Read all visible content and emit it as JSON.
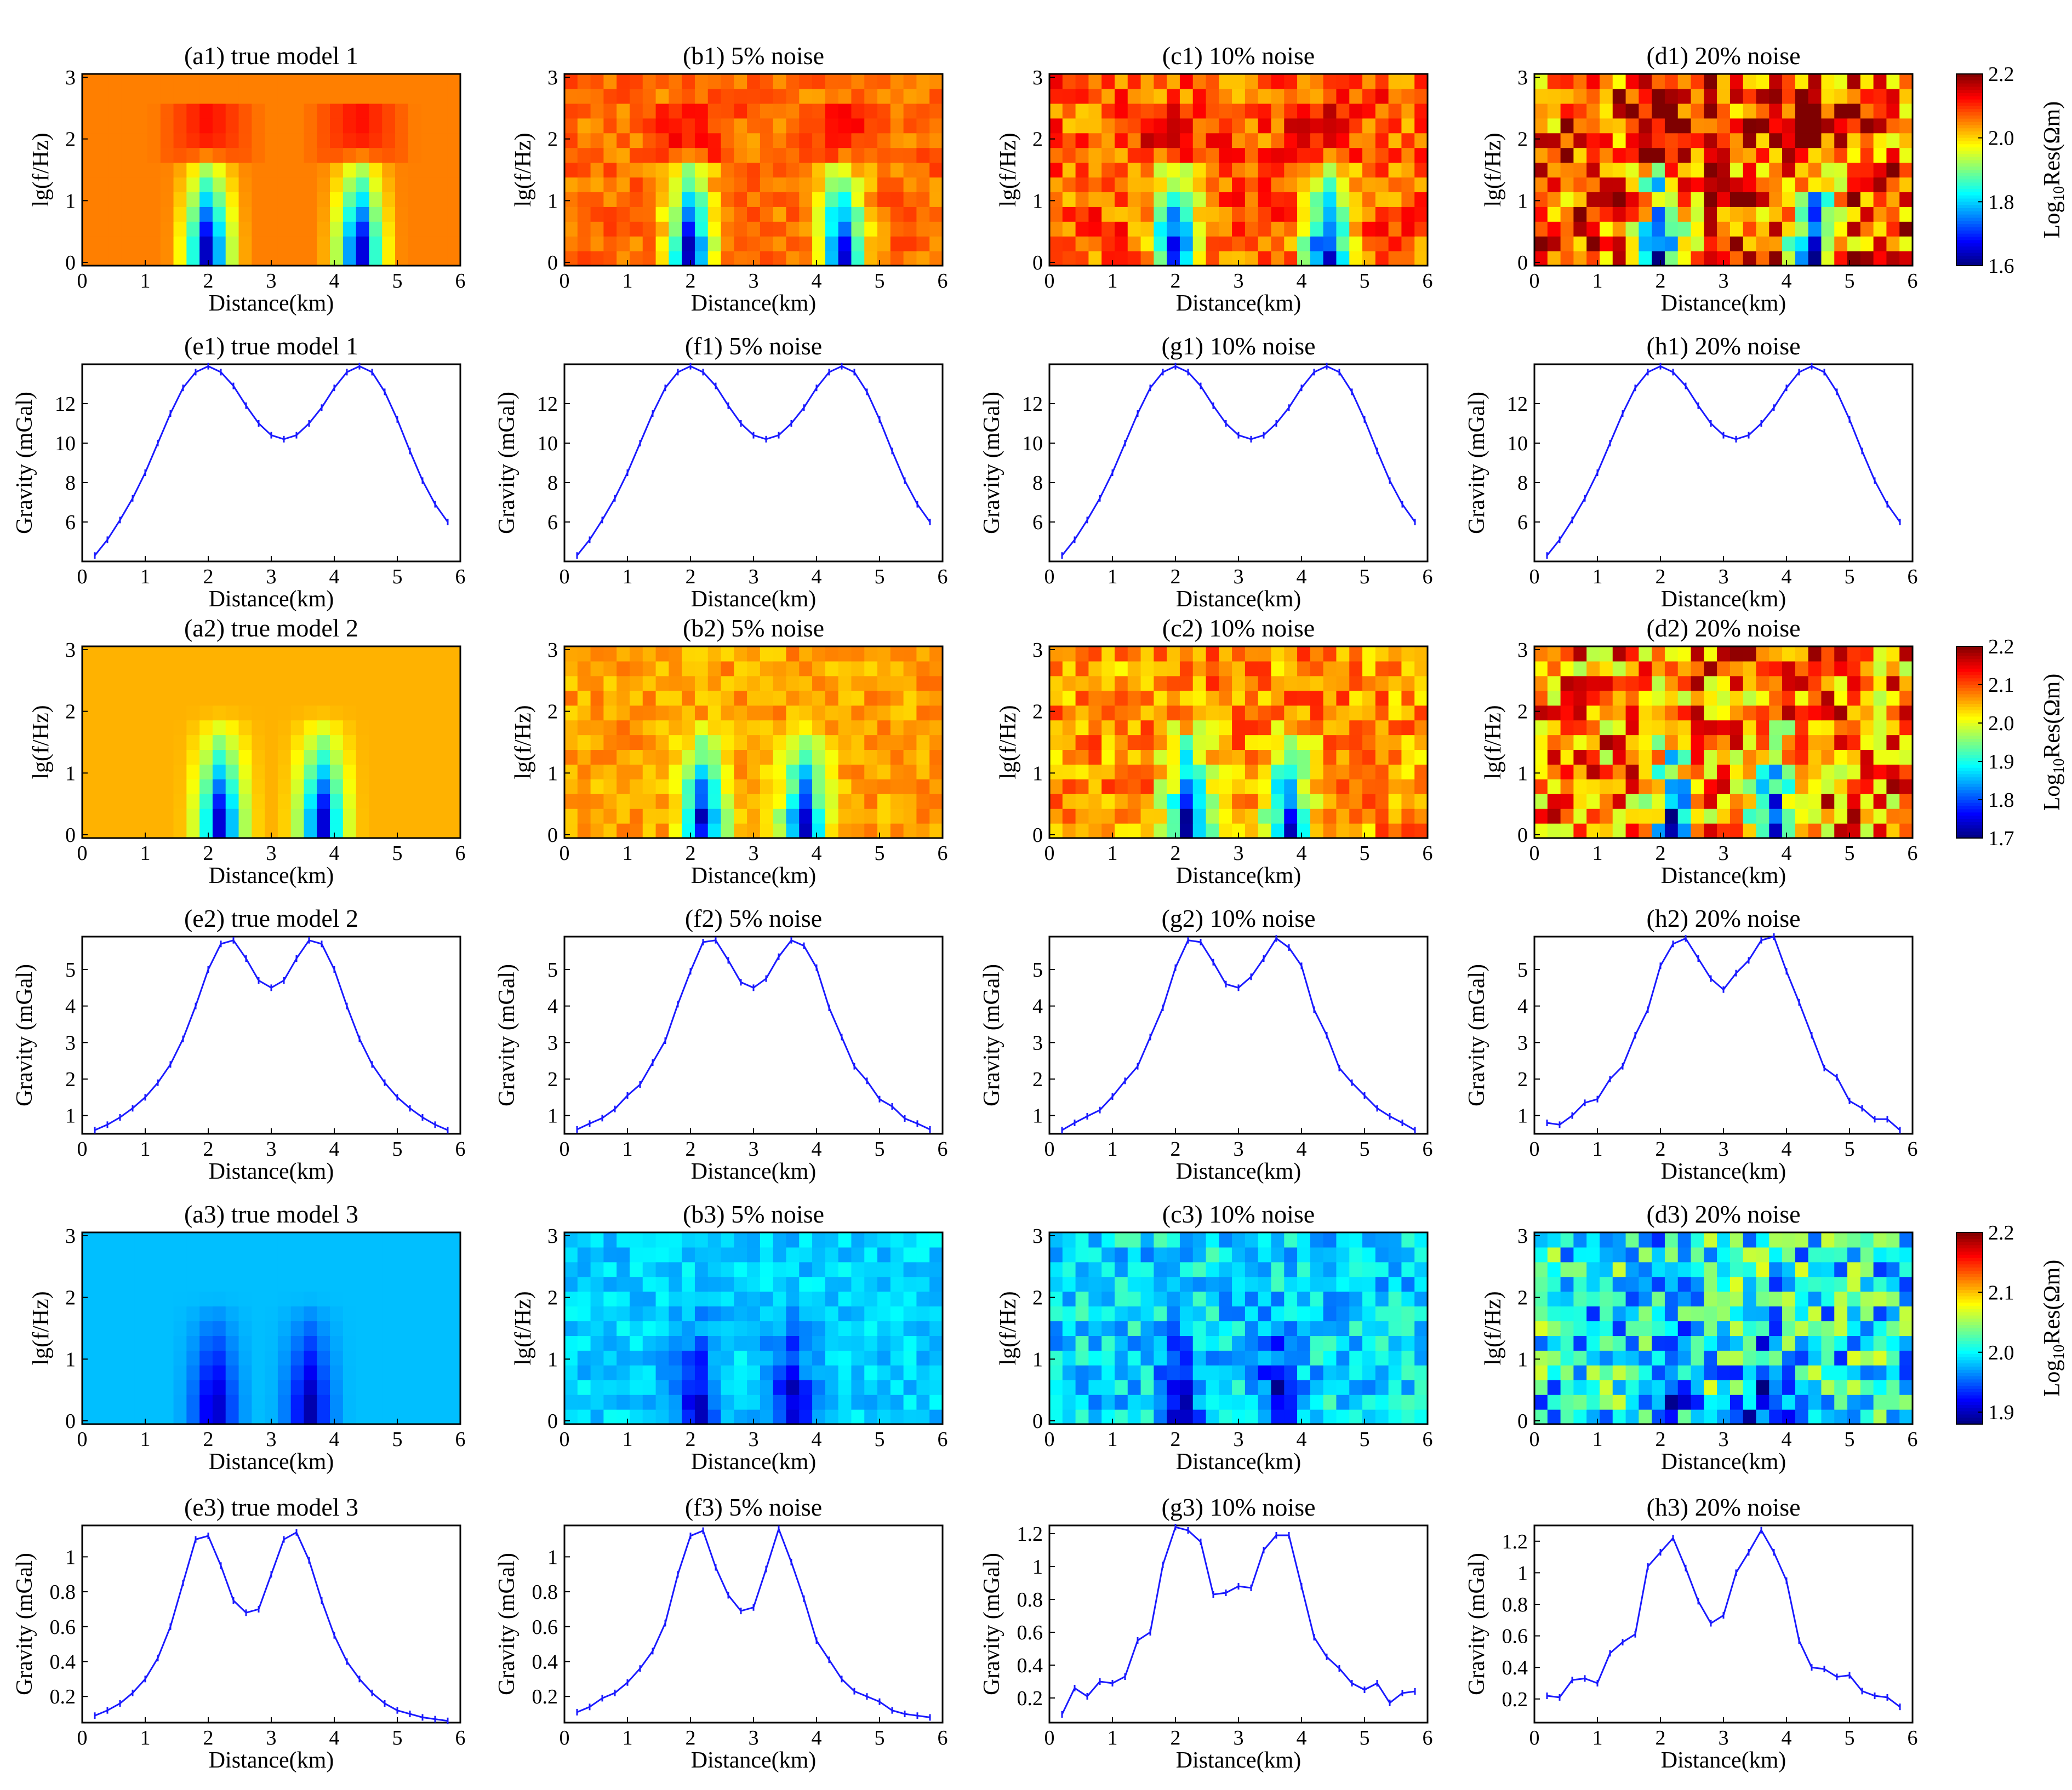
{
  "figure": {
    "x_label": "Distance(km)",
    "freq_label": "lg(f/Hz)",
    "gravity_label": "Gravity (mGal)",
    "colorbar_label": "Log10Res(Ωm)",
    "colorbar_label_main": "Log",
    "colorbar_label_sub": "10",
    "colorbar_label_tail": "Res(Ωm)"
  },
  "colors": {
    "line": "#1a1aff",
    "frame": "#000000",
    "colormap": [
      "#00007f",
      "#0000ff",
      "#007fff",
      "#00ffff",
      "#7fff7f",
      "#ffff00",
      "#ff7f00",
      "#ff0000",
      "#7f0000"
    ]
  },
  "chart_data": [
    {
      "type": "heatmap",
      "group": 1,
      "titles": [
        "(a1) true model 1",
        "(b1) 5% noise",
        "(c1)  10% noise",
        "(d1) 20% noise"
      ],
      "noise_levels": [
        0,
        0.05,
        0.1,
        0.2
      ],
      "xlabel": "Distance(km)",
      "ylabel": "lg(f/Hz)",
      "xlim": [
        0,
        6
      ],
      "ylim": [
        0,
        3
      ],
      "xticks": [
        "0",
        "1",
        "2",
        "3",
        "4",
        "5",
        "6"
      ],
      "yticks": [
        "0",
        "1",
        "2",
        "3"
      ],
      "nx": 29,
      "ny": 13,
      "clim": [
        1.6,
        2.2
      ],
      "background_log10_res": 2.05,
      "anomaly_centers_km": [
        2.0,
        4.4
      ],
      "anomaly_min_log10_res": 1.6,
      "colorbar": {
        "label": "Log10Res(Ωm)",
        "ticks": [
          "1.6",
          "1.8",
          "2.0",
          "2.2"
        ],
        "tick_values": [
          1.6,
          1.8,
          2.0,
          2.2
        ]
      }
    },
    {
      "type": "line",
      "group": 1,
      "titles": [
        "(e1) true model 1",
        "(f1) 5% noise",
        "(g1) 10% noise",
        "(h1) 20% noise"
      ],
      "xlabel": "Distance(km)",
      "ylabel": "Gravity (mGal)",
      "xlim": [
        0,
        6
      ],
      "ylim": [
        4,
        14
      ],
      "xticks": [
        "0",
        "1",
        "2",
        "3",
        "4",
        "5",
        "6"
      ],
      "yticks": [
        "6",
        "8",
        "10",
        "12"
      ],
      "ytick_values": [
        6,
        8,
        10,
        12
      ],
      "x": [
        0.2,
        0.4,
        0.6,
        0.8,
        1.0,
        1.2,
        1.4,
        1.6,
        1.8,
        2.0,
        2.2,
        2.4,
        2.6,
        2.8,
        3.0,
        3.2,
        3.4,
        3.6,
        3.8,
        4.0,
        4.2,
        4.4,
        4.6,
        4.8,
        5.0,
        5.2,
        5.4,
        5.6,
        5.8
      ],
      "series": [
        {
          "name": "true",
          "values": [
            4.3,
            5.1,
            6.1,
            7.2,
            8.5,
            10.0,
            11.5,
            12.8,
            13.6,
            13.9,
            13.6,
            12.9,
            11.9,
            11.0,
            10.4,
            10.2,
            10.4,
            11.0,
            11.8,
            12.8,
            13.6,
            13.9,
            13.6,
            12.6,
            11.2,
            9.6,
            8.1,
            6.9,
            6.0
          ]
        },
        {
          "name": "5% noise",
          "values": [
            4.3,
            5.1,
            6.1,
            7.2,
            8.5,
            10.0,
            11.5,
            12.8,
            13.6,
            13.9,
            13.6,
            12.9,
            11.9,
            11.0,
            10.4,
            10.2,
            10.4,
            11.0,
            11.8,
            12.8,
            13.6,
            13.9,
            13.6,
            12.6,
            11.2,
            9.6,
            8.1,
            6.9,
            6.0
          ]
        },
        {
          "name": "10% noise",
          "values": [
            4.3,
            5.1,
            6.1,
            7.2,
            8.5,
            10.0,
            11.5,
            12.8,
            13.6,
            13.9,
            13.6,
            12.9,
            11.9,
            11.0,
            10.4,
            10.2,
            10.4,
            11.0,
            11.8,
            12.8,
            13.6,
            13.9,
            13.6,
            12.6,
            11.2,
            9.6,
            8.1,
            6.9,
            6.0
          ]
        },
        {
          "name": "20% noise",
          "values": [
            4.3,
            5.1,
            6.1,
            7.2,
            8.5,
            10.0,
            11.5,
            12.8,
            13.6,
            13.9,
            13.6,
            12.9,
            11.9,
            11.0,
            10.4,
            10.2,
            10.4,
            11.0,
            11.8,
            12.8,
            13.6,
            13.9,
            13.6,
            12.6,
            11.2,
            9.6,
            8.1,
            6.9,
            6.0
          ]
        }
      ]
    },
    {
      "type": "heatmap",
      "group": 2,
      "titles": [
        "(a2) true model 2",
        "(b2) 5% noise",
        "(c2)  10% noise",
        "(d2) 20% noise"
      ],
      "noise_levels": [
        0,
        0.05,
        0.1,
        0.2
      ],
      "xlabel": "Distance(km)",
      "ylabel": "lg(f/Hz)",
      "xlim": [
        0,
        6
      ],
      "ylim": [
        0,
        3
      ],
      "xticks": [
        "0",
        "1",
        "2",
        "3",
        "4",
        "5",
        "6"
      ],
      "yticks": [
        "0",
        "1",
        "2",
        "3"
      ],
      "nx": 29,
      "ny": 13,
      "clim": [
        1.7,
        2.2
      ],
      "background_log10_res": 2.05,
      "anomaly_centers_km": [
        2.2,
        3.8
      ],
      "anomaly_min_log10_res": 1.72,
      "colorbar": {
        "label": "Log10Res(Ωm)",
        "ticks": [
          "1.7",
          "1.8",
          "1.9",
          "2.0",
          "2.1",
          "2.2"
        ],
        "tick_values": [
          1.7,
          1.8,
          1.9,
          2.0,
          2.1,
          2.2
        ]
      }
    },
    {
      "type": "line",
      "group": 2,
      "titles": [
        "(e2) true model 2",
        "(f2) 5% noise",
        "(g2) 10% noise",
        "(h2) 20% noise"
      ],
      "xlabel": "Distance(km)",
      "ylabel": "Gravity (mGal)",
      "xlim": [
        0,
        6
      ],
      "ylim": [
        0.5,
        5.9
      ],
      "xticks": [
        "0",
        "1",
        "2",
        "3",
        "4",
        "5",
        "6"
      ],
      "yticks": [
        "1",
        "2",
        "3",
        "4",
        "5"
      ],
      "ytick_values": [
        1,
        2,
        3,
        4,
        5
      ],
      "x": [
        0.2,
        0.4,
        0.6,
        0.8,
        1.0,
        1.2,
        1.4,
        1.6,
        1.8,
        2.0,
        2.2,
        2.4,
        2.6,
        2.8,
        3.0,
        3.2,
        3.4,
        3.6,
        3.8,
        4.0,
        4.2,
        4.4,
        4.6,
        4.8,
        5.0,
        5.2,
        5.4,
        5.6,
        5.8
      ],
      "series": [
        {
          "name": "true",
          "values": [
            0.6,
            0.75,
            0.95,
            1.2,
            1.5,
            1.9,
            2.4,
            3.1,
            4.0,
            5.0,
            5.7,
            5.8,
            5.3,
            4.7,
            4.5,
            4.7,
            5.3,
            5.8,
            5.7,
            5.0,
            4.0,
            3.1,
            2.4,
            1.9,
            1.5,
            1.2,
            0.95,
            0.75,
            0.6
          ]
        },
        {
          "name": "5% noise",
          "values": [
            0.62,
            0.78,
            0.93,
            1.18,
            1.55,
            1.85,
            2.45,
            3.05,
            4.05,
            4.95,
            5.75,
            5.8,
            5.25,
            4.65,
            4.5,
            4.75,
            5.35,
            5.8,
            5.65,
            5.05,
            3.95,
            3.15,
            2.35,
            1.95,
            1.45,
            1.25,
            0.92,
            0.78,
            0.62
          ]
        },
        {
          "name": "10% noise",
          "values": [
            0.6,
            0.8,
            0.98,
            1.15,
            1.52,
            1.95,
            2.35,
            3.15,
            3.95,
            5.05,
            5.8,
            5.75,
            5.2,
            4.6,
            4.5,
            4.8,
            5.3,
            5.85,
            5.6,
            5.1,
            3.9,
            3.2,
            2.3,
            1.9,
            1.55,
            1.2,
            0.98,
            0.8,
            0.6
          ]
        },
        {
          "name": "20% noise",
          "values": [
            0.8,
            0.75,
            1.0,
            1.35,
            1.45,
            2.0,
            2.35,
            3.2,
            3.9,
            5.1,
            5.7,
            5.85,
            5.3,
            4.75,
            4.45,
            4.9,
            5.25,
            5.8,
            5.9,
            4.95,
            4.1,
            3.2,
            2.3,
            2.05,
            1.4,
            1.2,
            0.9,
            0.9,
            0.6
          ]
        }
      ]
    },
    {
      "type": "heatmap",
      "group": 3,
      "titles": [
        "(a3) true model 3",
        "(b3) 5% noise",
        "(c3)  10% noise",
        "(d3) 20% noise"
      ],
      "noise_levels": [
        0,
        0.05,
        0.1,
        0.2
      ],
      "xlabel": "Distance(km)",
      "ylabel": "lg(f/Hz)",
      "xlim": [
        0,
        6
      ],
      "ylim": [
        0,
        3
      ],
      "xticks": [
        "0",
        "1",
        "2",
        "3",
        "4",
        "5",
        "6"
      ],
      "yticks": [
        "0",
        "1",
        "2",
        "3"
      ],
      "nx": 29,
      "ny": 13,
      "clim": [
        1.88,
        2.2
      ],
      "background_log10_res": 1.98,
      "anomaly_centers_km": [
        2.1,
        3.6
      ],
      "anomaly_min_log10_res": 1.89,
      "colorbar": {
        "label": "Log10Res(Ωm)",
        "ticks": [
          "1.9",
          "2.0",
          "2.1",
          "2.2"
        ],
        "tick_values": [
          1.9,
          2.0,
          2.1,
          2.2
        ]
      }
    },
    {
      "type": "line",
      "group": 3,
      "titles": [
        "(e3) true model 3",
        "(f3) 5% noise",
        "(g3) 10% noise",
        "(h3) 20% noise"
      ],
      "xlabel": "Distance(km)",
      "ylabel": "Gravity (mGal)",
      "xlim": [
        0,
        6
      ],
      "panel_ylims": [
        [
          0.05,
          1.18
        ],
        [
          0.05,
          1.18
        ],
        [
          0.05,
          1.25
        ],
        [
          0.05,
          1.3
        ]
      ],
      "panel_yticks": [
        [
          "0.2",
          "0.4",
          "0.6",
          "0.8",
          "1"
        ],
        [
          "0.2",
          "0.4",
          "0.6",
          "0.8",
          "1"
        ],
        [
          "0.2",
          "0.4",
          "0.6",
          "0.8",
          "1",
          "1.2"
        ],
        [
          "0.2",
          "0.4",
          "0.6",
          "0.8",
          "1",
          "1.2"
        ]
      ],
      "xticks": [
        "0",
        "1",
        "2",
        "3",
        "4",
        "5",
        "6"
      ],
      "x": [
        0.2,
        0.4,
        0.6,
        0.8,
        1.0,
        1.2,
        1.4,
        1.6,
        1.8,
        2.0,
        2.2,
        2.4,
        2.6,
        2.8,
        3.0,
        3.2,
        3.4,
        3.6,
        3.8,
        4.0,
        4.2,
        4.4,
        4.6,
        4.8,
        5.0,
        5.2,
        5.4,
        5.6,
        5.8
      ],
      "series": [
        {
          "name": "true",
          "values": [
            0.09,
            0.12,
            0.16,
            0.22,
            0.3,
            0.42,
            0.6,
            0.85,
            1.1,
            1.12,
            0.95,
            0.75,
            0.68,
            0.7,
            0.9,
            1.1,
            1.14,
            0.98,
            0.75,
            0.55,
            0.4,
            0.3,
            0.22,
            0.16,
            0.12,
            0.1,
            0.08,
            0.07,
            0.06
          ]
        },
        {
          "name": "5% noise",
          "values": [
            0.11,
            0.14,
            0.19,
            0.22,
            0.28,
            0.36,
            0.46,
            0.62,
            0.9,
            1.12,
            1.15,
            0.94,
            0.78,
            0.69,
            0.71,
            0.93,
            1.16,
            0.97,
            0.76,
            0.52,
            0.41,
            0.3,
            0.23,
            0.2,
            0.17,
            0.12,
            0.1,
            0.09,
            0.08
          ]
        },
        {
          "name": "10% noise",
          "values": [
            0.1,
            0.26,
            0.21,
            0.3,
            0.29,
            0.33,
            0.55,
            0.6,
            1.01,
            1.24,
            1.22,
            1.15,
            0.83,
            0.84,
            0.88,
            0.87,
            1.1,
            1.19,
            1.19,
            0.88,
            0.57,
            0.45,
            0.38,
            0.29,
            0.25,
            0.29,
            0.17,
            0.23,
            0.24
          ]
        },
        {
          "name": "20% noise",
          "values": [
            0.22,
            0.21,
            0.32,
            0.33,
            0.3,
            0.49,
            0.56,
            0.61,
            1.04,
            1.13,
            1.22,
            1.03,
            0.82,
            0.68,
            0.73,
            1.0,
            1.13,
            1.27,
            1.13,
            0.95,
            0.57,
            0.4,
            0.39,
            0.34,
            0.35,
            0.25,
            0.22,
            0.21,
            0.15
          ]
        }
      ]
    }
  ]
}
